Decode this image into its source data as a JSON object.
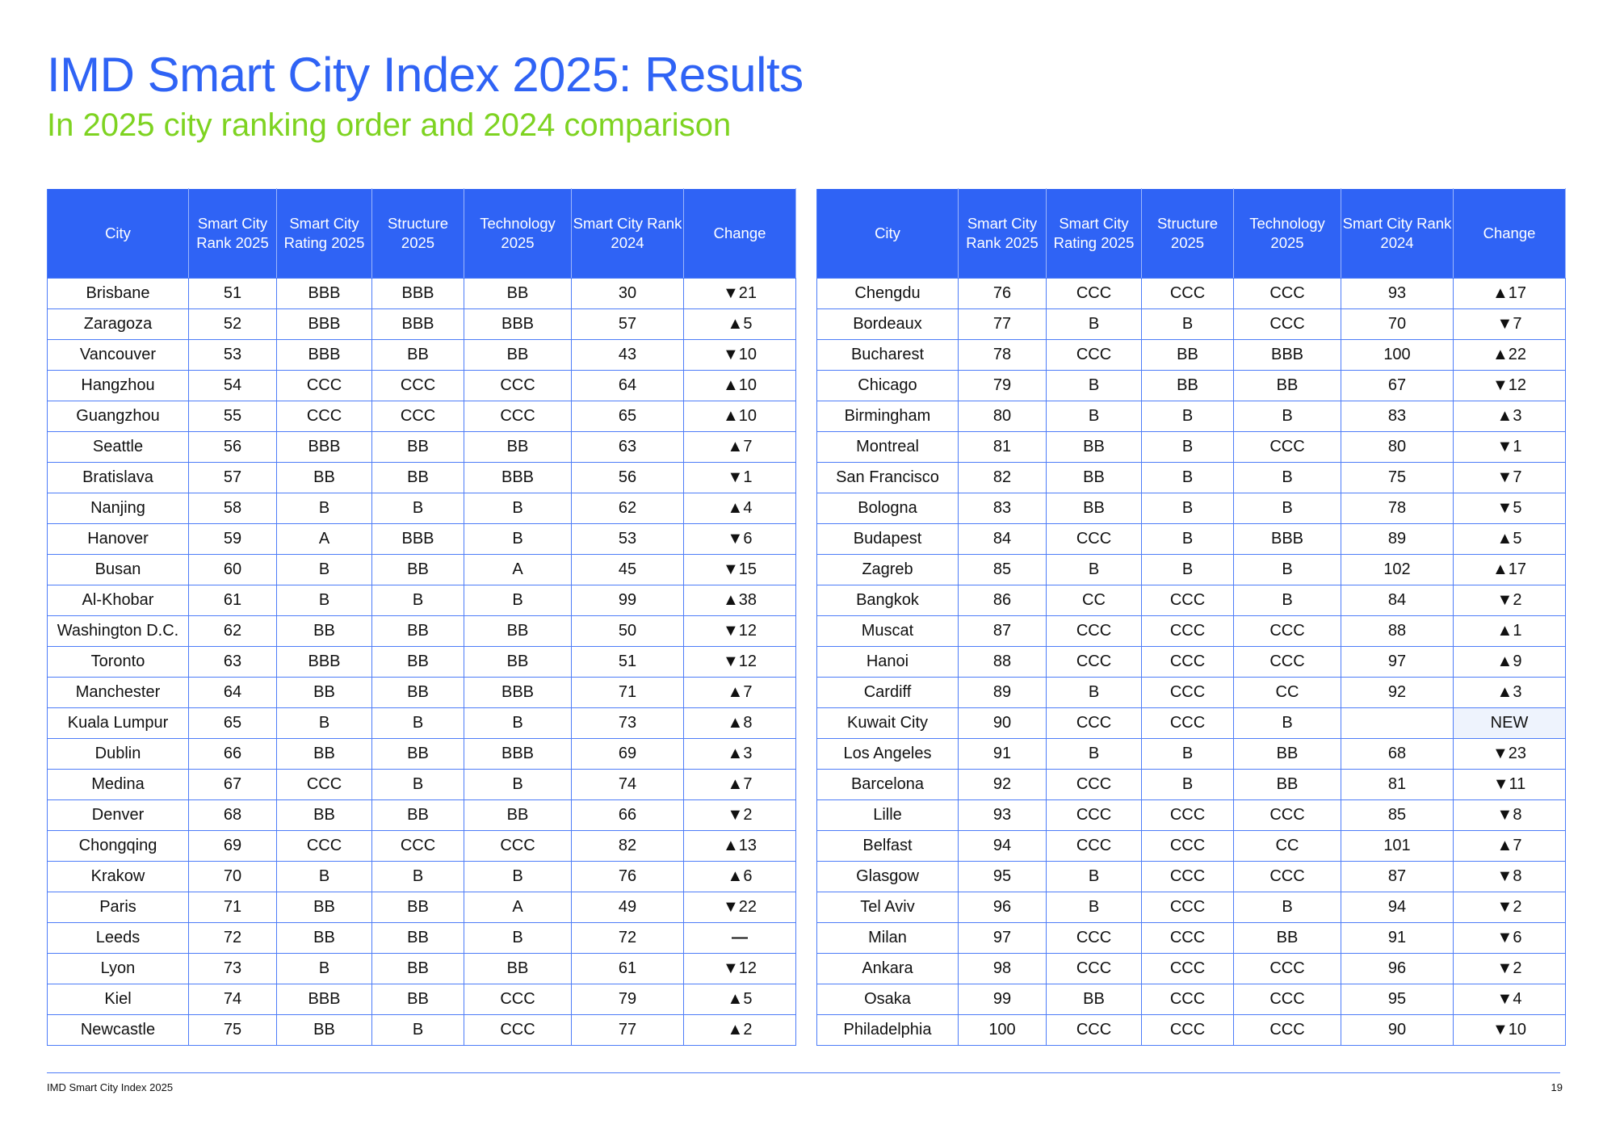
{
  "title": "IMD Smart City Index 2025: Results",
  "subtitle": "In 2025 city ranking order and 2024 comparison",
  "headers": [
    "City",
    "Smart City Rank 2025",
    "Smart City Rating 2025",
    "Structure 2025",
    "Technology 2025",
    "Smart City Rank 2024",
    "Change"
  ],
  "colors": {
    "accent": "#2f63f5",
    "subtitle": "#7ed321",
    "up": "#5fd42e",
    "down": "#ff2a5f",
    "same": "#ffc400"
  },
  "left_table": [
    {
      "city": "Brisbane",
      "rank": "51",
      "rating": "BBB",
      "structure": "BBB",
      "technology": "BB",
      "rank2024": "30",
      "dir": "down",
      "change": "21"
    },
    {
      "city": "Zaragoza",
      "rank": "52",
      "rating": "BBB",
      "structure": "BBB",
      "technology": "BBB",
      "rank2024": "57",
      "dir": "up",
      "change": "5"
    },
    {
      "city": "Vancouver",
      "rank": "53",
      "rating": "BBB",
      "structure": "BB",
      "technology": "BB",
      "rank2024": "43",
      "dir": "down",
      "change": "10"
    },
    {
      "city": "Hangzhou",
      "rank": "54",
      "rating": "CCC",
      "structure": "CCC",
      "technology": "CCC",
      "rank2024": "64",
      "dir": "up",
      "change": "10"
    },
    {
      "city": "Guangzhou",
      "rank": "55",
      "rating": "CCC",
      "structure": "CCC",
      "technology": "CCC",
      "rank2024": "65",
      "dir": "up",
      "change": "10"
    },
    {
      "city": "Seattle",
      "rank": "56",
      "rating": "BBB",
      "structure": "BB",
      "technology": "BB",
      "rank2024": "63",
      "dir": "up",
      "change": "7"
    },
    {
      "city": "Bratislava",
      "rank": "57",
      "rating": "BB",
      "structure": "BB",
      "technology": "BBB",
      "rank2024": "56",
      "dir": "down",
      "change": "1"
    },
    {
      "city": "Nanjing",
      "rank": "58",
      "rating": "B",
      "structure": "B",
      "technology": "B",
      "rank2024": "62",
      "dir": "up",
      "change": "4"
    },
    {
      "city": "Hanover",
      "rank": "59",
      "rating": "A",
      "structure": "BBB",
      "technology": "B",
      "rank2024": "53",
      "dir": "down",
      "change": "6"
    },
    {
      "city": "Busan",
      "rank": "60",
      "rating": "B",
      "structure": "BB",
      "technology": "A",
      "rank2024": "45",
      "dir": "down",
      "change": "15"
    },
    {
      "city": "Al-Khobar",
      "rank": "61",
      "rating": "B",
      "structure": "B",
      "technology": "B",
      "rank2024": "99",
      "dir": "up",
      "change": "38"
    },
    {
      "city": "Washington D.C.",
      "rank": "62",
      "rating": "BB",
      "structure": "BB",
      "technology": "BB",
      "rank2024": "50",
      "dir": "down",
      "change": "12"
    },
    {
      "city": "Toronto",
      "rank": "63",
      "rating": "BBB",
      "structure": "BB",
      "technology": "BB",
      "rank2024": "51",
      "dir": "down",
      "change": "12"
    },
    {
      "city": "Manchester",
      "rank": "64",
      "rating": "BB",
      "structure": "BB",
      "technology": "BBB",
      "rank2024": "71",
      "dir": "up",
      "change": "7"
    },
    {
      "city": "Kuala Lumpur",
      "rank": "65",
      "rating": "B",
      "structure": "B",
      "technology": "B",
      "rank2024": "73",
      "dir": "up",
      "change": "8"
    },
    {
      "city": "Dublin",
      "rank": "66",
      "rating": "BB",
      "structure": "BB",
      "technology": "BBB",
      "rank2024": "69",
      "dir": "up",
      "change": "3"
    },
    {
      "city": "Medina",
      "rank": "67",
      "rating": "CCC",
      "structure": "B",
      "technology": "B",
      "rank2024": "74",
      "dir": "up",
      "change": "7"
    },
    {
      "city": "Denver",
      "rank": "68",
      "rating": "BB",
      "structure": "BB",
      "technology": "BB",
      "rank2024": "66",
      "dir": "down",
      "change": "2"
    },
    {
      "city": "Chongqing",
      "rank": "69",
      "rating": "CCC",
      "structure": "CCC",
      "technology": "CCC",
      "rank2024": "82",
      "dir": "up",
      "change": "13"
    },
    {
      "city": "Krakow",
      "rank": "70",
      "rating": "B",
      "structure": "B",
      "technology": "B",
      "rank2024": "76",
      "dir": "up",
      "change": "6"
    },
    {
      "city": "Paris",
      "rank": "71",
      "rating": "BB",
      "structure": "BB",
      "technology": "A",
      "rank2024": "49",
      "dir": "down",
      "change": "22"
    },
    {
      "city": "Leeds",
      "rank": "72",
      "rating": "BB",
      "structure": "BB",
      "technology": "B",
      "rank2024": "72",
      "dir": "same",
      "change": ""
    },
    {
      "city": "Lyon",
      "rank": "73",
      "rating": "B",
      "structure": "BB",
      "technology": "BB",
      "rank2024": "61",
      "dir": "down",
      "change": "12"
    },
    {
      "city": "Kiel",
      "rank": "74",
      "rating": "BBB",
      "structure": "BB",
      "technology": "CCC",
      "rank2024": "79",
      "dir": "up",
      "change": "5"
    },
    {
      "city": "Newcastle",
      "rank": "75",
      "rating": "BB",
      "structure": "B",
      "technology": "CCC",
      "rank2024": "77",
      "dir": "up",
      "change": "2"
    }
  ],
  "right_table": [
    {
      "city": "Chengdu",
      "rank": "76",
      "rating": "CCC",
      "structure": "CCC",
      "technology": "CCC",
      "rank2024": "93",
      "dir": "up",
      "change": "17"
    },
    {
      "city": "Bordeaux",
      "rank": "77",
      "rating": "B",
      "structure": "B",
      "technology": "CCC",
      "rank2024": "70",
      "dir": "down",
      "change": "7"
    },
    {
      "city": "Bucharest",
      "rank": "78",
      "rating": "CCC",
      "structure": "BB",
      "technology": "BBB",
      "rank2024": "100",
      "dir": "up",
      "change": "22"
    },
    {
      "city": "Chicago",
      "rank": "79",
      "rating": "B",
      "structure": "BB",
      "technology": "BB",
      "rank2024": "67",
      "dir": "down",
      "change": "12"
    },
    {
      "city": "Birmingham",
      "rank": "80",
      "rating": "B",
      "structure": "B",
      "technology": "B",
      "rank2024": "83",
      "dir": "up",
      "change": "3"
    },
    {
      "city": "Montreal",
      "rank": "81",
      "rating": "BB",
      "structure": "B",
      "technology": "CCC",
      "rank2024": "80",
      "dir": "down",
      "change": "1"
    },
    {
      "city": "San Francisco",
      "rank": "82",
      "rating": "BB",
      "structure": "B",
      "technology": "B",
      "rank2024": "75",
      "dir": "down",
      "change": "7"
    },
    {
      "city": "Bologna",
      "rank": "83",
      "rating": "BB",
      "structure": "B",
      "technology": "B",
      "rank2024": "78",
      "dir": "down",
      "change": "5"
    },
    {
      "city": "Budapest",
      "rank": "84",
      "rating": "CCC",
      "structure": "B",
      "technology": "BBB",
      "rank2024": "89",
      "dir": "up",
      "change": "5"
    },
    {
      "city": "Zagreb",
      "rank": "85",
      "rating": "B",
      "structure": "B",
      "technology": "B",
      "rank2024": "102",
      "dir": "up",
      "change": "17"
    },
    {
      "city": "Bangkok",
      "rank": "86",
      "rating": "CC",
      "structure": "CCC",
      "technology": "B",
      "rank2024": "84",
      "dir": "down",
      "change": "2"
    },
    {
      "city": "Muscat",
      "rank": "87",
      "rating": "CCC",
      "structure": "CCC",
      "technology": "CCC",
      "rank2024": "88",
      "dir": "up",
      "change": "1"
    },
    {
      "city": "Hanoi",
      "rank": "88",
      "rating": "CCC",
      "structure": "CCC",
      "technology": "CCC",
      "rank2024": "97",
      "dir": "up",
      "change": "9"
    },
    {
      "city": "Cardiff",
      "rank": "89",
      "rating": "B",
      "structure": "CCC",
      "technology": "CC",
      "rank2024": "92",
      "dir": "up",
      "change": "3"
    },
    {
      "city": "Kuwait City",
      "rank": "90",
      "rating": "CCC",
      "structure": "CCC",
      "technology": "B",
      "rank2024": "",
      "dir": "new",
      "change": "NEW"
    },
    {
      "city": "Los Angeles",
      "rank": "91",
      "rating": "B",
      "structure": "B",
      "technology": "BB",
      "rank2024": "68",
      "dir": "down",
      "change": "23"
    },
    {
      "city": "Barcelona",
      "rank": "92",
      "rating": "CCC",
      "structure": "B",
      "technology": "BB",
      "rank2024": "81",
      "dir": "down",
      "change": "11"
    },
    {
      "city": "Lille",
      "rank": "93",
      "rating": "CCC",
      "structure": "CCC",
      "technology": "CCC",
      "rank2024": "85",
      "dir": "down",
      "change": "8"
    },
    {
      "city": "Belfast",
      "rank": "94",
      "rating": "CCC",
      "structure": "CCC",
      "technology": "CC",
      "rank2024": "101",
      "dir": "up",
      "change": "7"
    },
    {
      "city": "Glasgow",
      "rank": "95",
      "rating": "B",
      "structure": "CCC",
      "technology": "CCC",
      "rank2024": "87",
      "dir": "down",
      "change": "8"
    },
    {
      "city": "Tel Aviv",
      "rank": "96",
      "rating": "B",
      "structure": "CCC",
      "technology": "B",
      "rank2024": "94",
      "dir": "down",
      "change": "2"
    },
    {
      "city": "Milan",
      "rank": "97",
      "rating": "CCC",
      "structure": "CCC",
      "technology": "BB",
      "rank2024": "91",
      "dir": "down",
      "change": "6"
    },
    {
      "city": "Ankara",
      "rank": "98",
      "rating": "CCC",
      "structure": "CCC",
      "technology": "CCC",
      "rank2024": "96",
      "dir": "down",
      "change": "2"
    },
    {
      "city": "Osaka",
      "rank": "99",
      "rating": "BB",
      "structure": "CCC",
      "technology": "CCC",
      "rank2024": "95",
      "dir": "down",
      "change": "4"
    },
    {
      "city": "Philadelphia",
      "rank": "100",
      "rating": "CCC",
      "structure": "CCC",
      "technology": "CCC",
      "rank2024": "90",
      "dir": "down",
      "change": "10"
    }
  ],
  "footer": {
    "left": "IMD Smart City Index 2025",
    "page_number": "19"
  }
}
